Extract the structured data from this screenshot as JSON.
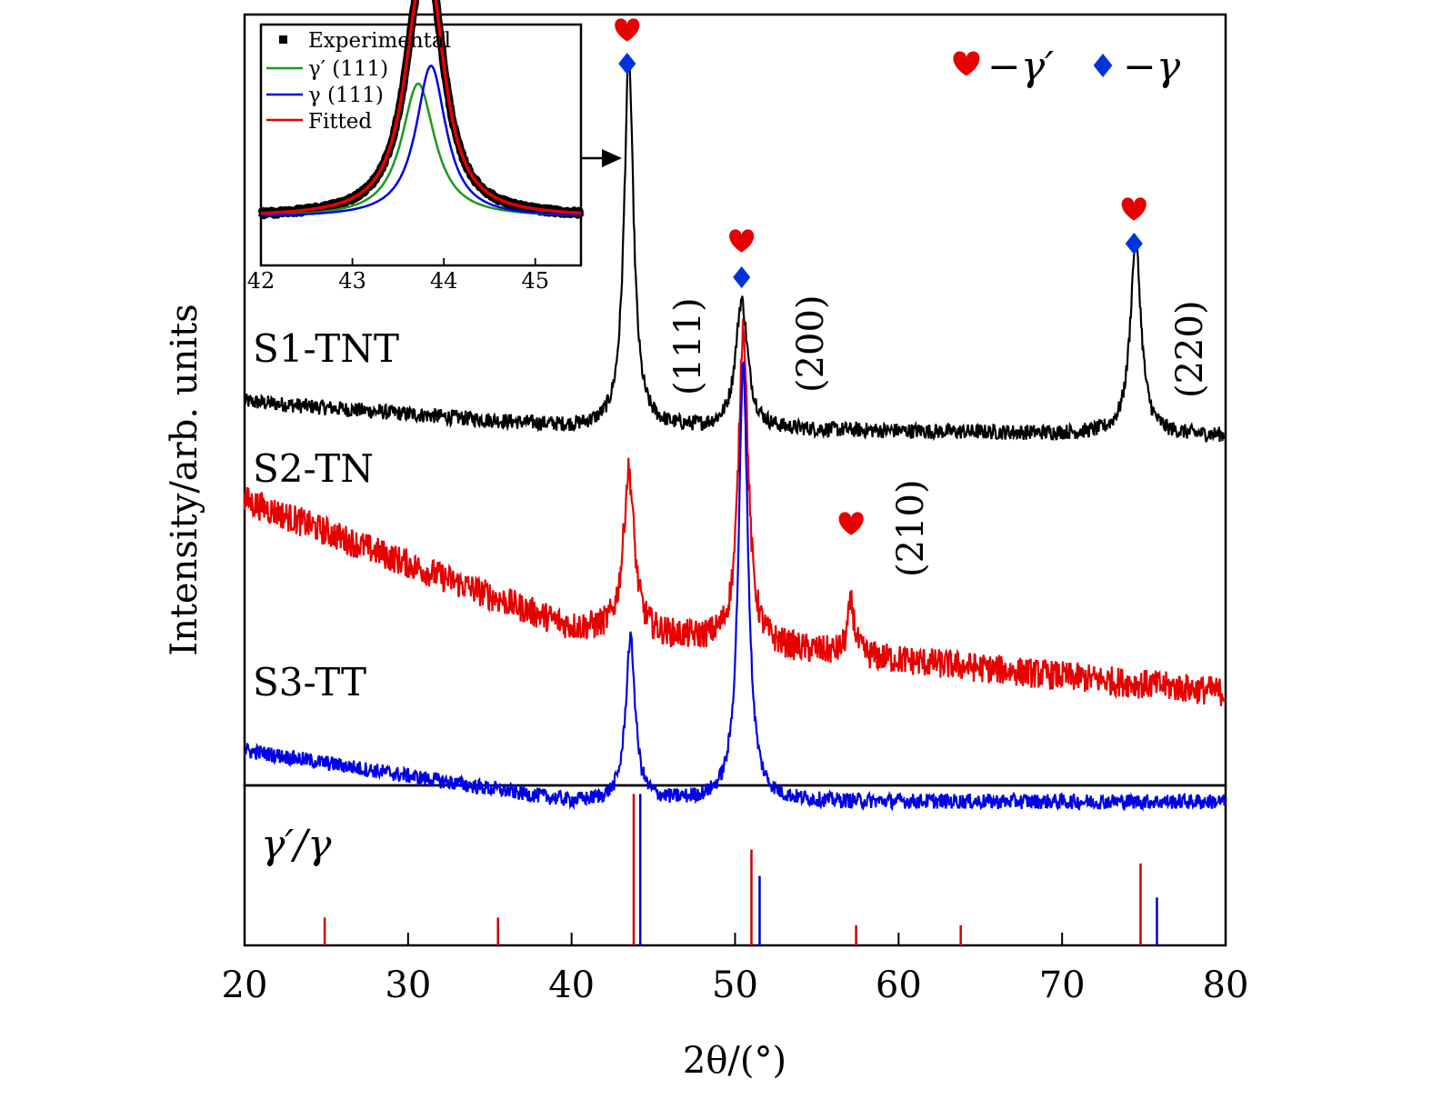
{
  "colors": {
    "s1": "#000000",
    "s2": "#e60000",
    "s3": "#0000e6",
    "gamma_prime": "#cc0000",
    "gamma": "#0000cc",
    "green": "#1a9a1a",
    "red_fit": "#e60000",
    "heart": "#e60000",
    "diamond": "#0033dd"
  },
  "chart_data": [
    {
      "type": "line",
      "role": "main",
      "xlabel": "2θ/(°)",
      "ylabel": "Intensity/arb. units",
      "xlim": [
        20,
        80
      ],
      "x_ticks": [
        "20",
        "30",
        "40",
        "50",
        "60",
        "70",
        "80"
      ],
      "series": [
        {
          "name": "S1-TNT",
          "baseline": [
            [
              20,
              0.72
            ],
            [
              40,
              0.66
            ],
            [
              80,
              0.64
            ]
          ],
          "noise": 0.018,
          "peaks": [
            {
              "x": 43.5,
              "height": 0.86,
              "width": 0.35
            },
            {
              "x": 50.4,
              "height": 0.3,
              "width": 0.45
            },
            {
              "x": 74.5,
              "height": 0.45,
              "width": 0.4
            }
          ]
        },
        {
          "name": "S2-TN",
          "baseline": [
            [
              20,
              1.0
            ],
            [
              40,
              0.7
            ],
            [
              80,
              0.55
            ]
          ],
          "noise": 0.035,
          "peaks": [
            {
              "x": 43.5,
              "height": 0.38,
              "width": 0.4
            },
            {
              "x": 50.5,
              "height": 0.75,
              "width": 0.35
            },
            {
              "x": 57.1,
              "height": 0.12,
              "width": 0.25
            }
          ]
        },
        {
          "name": "S3-TT",
          "baseline": [
            [
              20,
              0.35
            ],
            [
              40,
              0.23
            ],
            [
              80,
              0.23
            ]
          ],
          "noise": 0.018,
          "peaks": [
            {
              "x": 43.6,
              "height": 0.38,
              "width": 0.35
            },
            {
              "x": 50.5,
              "height": 1.02,
              "width": 0.35
            }
          ]
        }
      ],
      "peak_labels": [
        {
          "x": 43.6,
          "text": "(111)"
        },
        {
          "x": 50.5,
          "text": "(200)"
        },
        {
          "x": 57.1,
          "text": "(210)"
        },
        {
          "x": 74.5,
          "text": "(220)"
        }
      ],
      "sample_labels": [
        "S1-TNT",
        "S2-TN",
        "S3-TT"
      ],
      "legend": {
        "placement": "top-right",
        "entries": [
          "−γ′",
          "−γ"
        ]
      },
      "markers": [
        {
          "x": 43.4,
          "symbols": [
            "heart",
            "diamond"
          ]
        },
        {
          "x": 50.4,
          "symbols": [
            "heart",
            "diamond"
          ]
        },
        {
          "x": 74.4,
          "symbols": [
            "heart",
            "diamond"
          ]
        },
        {
          "x": 57.1,
          "symbols": [
            "heart"
          ]
        }
      ]
    },
    {
      "type": "bar",
      "role": "reference",
      "label": "γ′/γ",
      "xlim": [
        20,
        80
      ],
      "gamma_prime_lines": [
        {
          "x": 24.9,
          "value": 0.18
        },
        {
          "x": 35.5,
          "value": 0.18
        },
        {
          "x": 43.8,
          "value": 0.98
        },
        {
          "x": 51.0,
          "value": 0.62
        },
        {
          "x": 57.4,
          "value": 0.13
        },
        {
          "x": 63.8,
          "value": 0.13
        },
        {
          "x": 74.8,
          "value": 0.53
        }
      ],
      "gamma_lines": [
        {
          "x": 44.2,
          "value": 0.98
        },
        {
          "x": 51.5,
          "value": 0.45
        },
        {
          "x": 75.8,
          "value": 0.31
        }
      ]
    },
    {
      "type": "line",
      "role": "inset",
      "xlim": [
        42,
        45.5
      ],
      "x_ticks": [
        "42",
        "43",
        "44",
        "45"
      ],
      "legend": [
        "Experimental",
        "γ′ (111)",
        "γ (111)",
        "Fitted"
      ],
      "components": [
        {
          "name": "γ′ (111)",
          "center": 43.72,
          "height": 0.6,
          "width": 0.22
        },
        {
          "name": "γ (111)",
          "center": 43.86,
          "height": 0.68,
          "width": 0.2
        }
      ],
      "baseline": 0.04,
      "xlabel_arrow": "points to S1-TNT (111) peak"
    }
  ]
}
